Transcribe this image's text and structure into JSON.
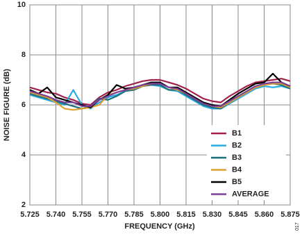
{
  "chart_data": {
    "type": "line",
    "x_label": "FREQUENCY (GHz)",
    "y_label": "NOISE FIGURE (dB)",
    "figure_code": "017",
    "x": [
      5.725,
      5.73,
      5.735,
      5.74,
      5.745,
      5.75,
      5.755,
      5.76,
      5.765,
      5.77,
      5.775,
      5.78,
      5.785,
      5.79,
      5.795,
      5.8,
      5.805,
      5.81,
      5.815,
      5.82,
      5.825,
      5.83,
      5.835,
      5.84,
      5.845,
      5.85,
      5.855,
      5.86,
      5.865,
      5.87,
      5.875
    ],
    "series": [
      {
        "name": "B1",
        "color": "#a0214a",
        "values": [
          6.7,
          6.6,
          6.5,
          6.45,
          6.3,
          6.2,
          6.05,
          6.0,
          6.3,
          6.5,
          6.6,
          6.75,
          6.85,
          6.95,
          7.0,
          7.0,
          6.9,
          6.8,
          6.65,
          6.45,
          6.25,
          6.15,
          6.1,
          6.35,
          6.55,
          6.75,
          6.9,
          6.95,
          7.0,
          7.05,
          6.95
        ]
      },
      {
        "name": "B2",
        "color": "#29aae1",
        "values": [
          6.4,
          6.3,
          6.2,
          6.1,
          6.0,
          6.6,
          6.0,
          5.85,
          6.1,
          6.3,
          6.4,
          6.55,
          6.65,
          6.75,
          6.8,
          6.75,
          6.6,
          6.55,
          6.35,
          6.15,
          5.95,
          5.85,
          5.85,
          6.05,
          6.25,
          6.45,
          6.65,
          6.75,
          6.7,
          6.75,
          6.65
        ]
      },
      {
        "name": "B3",
        "color": "#1a6f7a",
        "values": [
          6.45,
          6.35,
          6.25,
          6.15,
          6.05,
          5.95,
          5.85,
          5.95,
          6.25,
          6.2,
          6.35,
          6.55,
          6.6,
          6.75,
          6.8,
          6.8,
          6.6,
          6.6,
          6.4,
          6.2,
          6.0,
          5.9,
          5.85,
          6.1,
          6.3,
          6.5,
          6.7,
          6.8,
          6.85,
          6.8,
          6.65
        ]
      },
      {
        "name": "B4",
        "color": "#e0a030",
        "values": [
          6.5,
          6.4,
          6.3,
          6.1,
          5.85,
          5.8,
          5.85,
          5.9,
          6.0,
          6.4,
          6.5,
          6.6,
          6.65,
          6.75,
          6.85,
          6.85,
          6.7,
          6.6,
          6.45,
          6.25,
          6.05,
          5.95,
          5.9,
          6.1,
          6.3,
          6.5,
          6.7,
          6.8,
          6.85,
          6.85,
          6.7
        ]
      },
      {
        "name": "B5",
        "color": "#000000",
        "values": [
          6.6,
          6.45,
          6.7,
          6.3,
          6.2,
          6.1,
          6.0,
          5.9,
          6.2,
          6.4,
          6.8,
          6.65,
          6.7,
          6.8,
          6.9,
          6.9,
          6.7,
          6.7,
          6.5,
          6.3,
          6.1,
          6.0,
          5.95,
          6.2,
          6.45,
          6.65,
          6.85,
          6.9,
          7.25,
          6.9,
          6.75
        ]
      },
      {
        "name": "AVERAGE",
        "color": "#7b3f98",
        "values": [
          6.55,
          6.45,
          6.35,
          6.2,
          6.1,
          6.1,
          5.95,
          5.95,
          6.2,
          6.35,
          6.5,
          6.6,
          6.7,
          6.8,
          6.85,
          6.85,
          6.7,
          6.65,
          6.45,
          6.25,
          6.05,
          5.95,
          5.95,
          6.15,
          6.35,
          6.55,
          6.75,
          6.85,
          6.9,
          6.9,
          6.75
        ]
      }
    ],
    "xlim": [
      5.725,
      5.875
    ],
    "xticks": [
      5.725,
      {
        "value": 5.74,
        "label": "5.740"
      },
      5.755,
      {
        "value": 5.77,
        "label": "5.770"
      },
      5.785,
      {
        "value": 5.8,
        "label": "5.800"
      },
      5.815,
      {
        "value": 5.83,
        "label": "5.830"
      },
      5.845,
      {
        "value": 5.86,
        "label": "5.860"
      },
      5.875
    ],
    "ylim": [
      2,
      10
    ],
    "yticks": [
      2,
      4,
      6,
      8,
      10
    ],
    "grid": true
  }
}
